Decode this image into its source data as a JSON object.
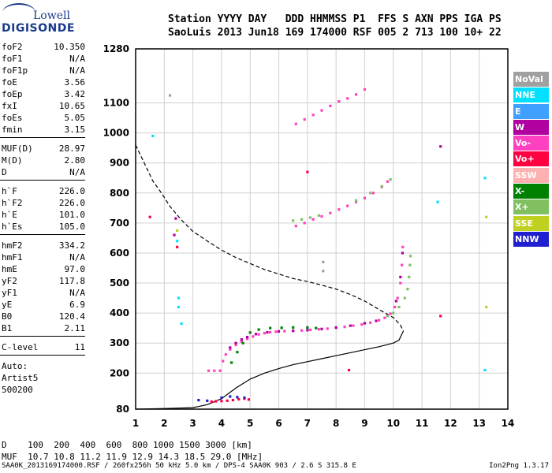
{
  "logo": {
    "line1": "Lowell",
    "line2": "DIGISONDE"
  },
  "header": {
    "line1": "Station YYYY DAY   DDD HHMMSS P1  FFS S AXN PPS IGA PS",
    "line2": "SaoLuis 2013 Jun18 169 174000 RSF 005 2 713 100 10+ 22"
  },
  "params": {
    "group1": [
      {
        "name": "foF2",
        "value": "10.350"
      },
      {
        "name": "foF1",
        "value": "N/A"
      },
      {
        "name": "foF1p",
        "value": "N/A"
      },
      {
        "name": "foE",
        "value": "3.56"
      },
      {
        "name": "foEp",
        "value": "3.42"
      },
      {
        "name": "fxI",
        "value": "10.65"
      },
      {
        "name": "foEs",
        "value": "5.05"
      },
      {
        "name": "fmin",
        "value": "3.15"
      }
    ],
    "group2": [
      {
        "name": "MUF(D)",
        "value": "28.97"
      },
      {
        "name": "M(D)",
        "value": "2.80"
      },
      {
        "name": "D",
        "value": "N/A"
      }
    ],
    "group3": [
      {
        "name": "h`F",
        "value": "226.0"
      },
      {
        "name": "h`F2",
        "value": "226.0"
      },
      {
        "name": "h`E",
        "value": "101.0"
      },
      {
        "name": "h`Es",
        "value": "105.0"
      }
    ],
    "group4": [
      {
        "name": "hmF2",
        "value": "334.2"
      },
      {
        "name": "hmF1",
        "value": "N/A"
      },
      {
        "name": "hmE",
        "value": "97.0"
      },
      {
        "name": "yF2",
        "value": "117.8"
      },
      {
        "name": "yF1",
        "value": "N/A"
      },
      {
        "name": "yE",
        "value": "6.9"
      },
      {
        "name": "B0",
        "value": "120.4"
      },
      {
        "name": "B1",
        "value": "2.11"
      }
    ],
    "clevel": {
      "name": "C-level",
      "value": "11"
    },
    "auto": [
      "Auto:",
      "Artist5",
      "500200"
    ]
  },
  "legend": [
    {
      "label": "NoVal",
      "color": "#a0a0a0"
    },
    {
      "label": "NNE",
      "color": "#00e0ff"
    },
    {
      "label": "E",
      "color": "#40a0ff"
    },
    {
      "label": "W",
      "color": "#b000a0"
    },
    {
      "label": "Vo-",
      "color": "#ff40c0"
    },
    {
      "label": "Vo+",
      "color": "#ff0040"
    },
    {
      "label": "SSW",
      "color": "#ffb0b0"
    },
    {
      "label": "X-",
      "color": "#008000"
    },
    {
      "label": "X+",
      "color": "#80c060"
    },
    {
      "label": "SSE",
      "color": "#c0d020"
    },
    {
      "label": "NNW",
      "color": "#2020d0"
    }
  ],
  "table": {
    "d_row": "D    100  200  400  600  800 1000 1500 3000 [km]",
    "muf_row": "MUF  10.7 10.8 11.2 11.9 12.9 14.3 18.5 29.0 [MHz]"
  },
  "footer": {
    "left": "SAA0K_2013169174000.RSF / 260fx256h 50 kHz 5.0 km / DPS-4 SAA0K 903 / 2.6 S 315.8 E",
    "right": "Ion2Png 1.3.17"
  },
  "chart_data": {
    "type": "scatter",
    "xlim": [
      1,
      14
    ],
    "ylim": [
      80,
      1280
    ],
    "x_ticks": [
      1,
      2,
      3,
      4,
      5,
      6,
      7,
      8,
      9,
      10,
      11,
      12,
      13,
      14
    ],
    "y_ticks": [
      80,
      200,
      300,
      400,
      500,
      600,
      700,
      800,
      900,
      1000,
      1100,
      1280
    ],
    "y_tick_labels": [
      "80",
      "200",
      "300",
      "400",
      "500",
      "600",
      "700",
      "800",
      "900",
      "1000",
      "1100",
      "1280"
    ],
    "grid": true,
    "series": [
      {
        "color": "#ff0040",
        "points": [
          [
            3.65,
            105
          ],
          [
            3.8,
            106
          ],
          [
            4.0,
            107
          ],
          [
            4.2,
            108
          ],
          [
            4.4,
            110
          ],
          [
            4.6,
            113
          ],
          [
            4.8,
            115
          ],
          [
            4.95,
            112
          ]
        ]
      },
      {
        "color": "#ff40c0",
        "points": [
          [
            3.55,
            208
          ],
          [
            3.75,
            208
          ],
          [
            3.95,
            208
          ],
          [
            4.05,
            240
          ],
          [
            4.15,
            262
          ],
          [
            4.3,
            279
          ],
          [
            4.5,
            294
          ],
          [
            4.7,
            305
          ],
          [
            4.9,
            314
          ],
          [
            5.1,
            322
          ],
          [
            5.3,
            329
          ],
          [
            5.5,
            333
          ],
          [
            5.7,
            336
          ],
          [
            5.9,
            338
          ],
          [
            6.2,
            340
          ],
          [
            6.5,
            341
          ],
          [
            6.8,
            342
          ],
          [
            7.1,
            344
          ],
          [
            7.4,
            346
          ],
          [
            7.7,
            348
          ],
          [
            8.0,
            351
          ],
          [
            8.3,
            354
          ],
          [
            8.6,
            358
          ],
          [
            8.9,
            362
          ],
          [
            9.2,
            368
          ],
          [
            9.5,
            376
          ],
          [
            9.7,
            384
          ],
          [
            9.9,
            398
          ],
          [
            10.05,
            420
          ],
          [
            10.15,
            450
          ],
          [
            10.25,
            500
          ],
          [
            10.3,
            560
          ],
          [
            10.33,
            620
          ]
        ]
      },
      {
        "color": "#b000a0",
        "points": [
          [
            4.3,
            285
          ],
          [
            4.5,
            300
          ],
          [
            4.7,
            312
          ],
          [
            4.9,
            320
          ],
          [
            5.2,
            330
          ],
          [
            5.6,
            336
          ],
          [
            6.0,
            339
          ],
          [
            6.5,
            341
          ],
          [
            7.0,
            343
          ],
          [
            7.5,
            347
          ],
          [
            8.0,
            352
          ],
          [
            8.5,
            358
          ],
          [
            9.0,
            366
          ],
          [
            9.4,
            374
          ],
          [
            9.8,
            392
          ],
          [
            10.1,
            440
          ],
          [
            10.25,
            520
          ],
          [
            10.32,
            600
          ]
        ]
      },
      {
        "color": "#008000",
        "points": [
          [
            4.35,
            235
          ],
          [
            4.55,
            270
          ],
          [
            4.75,
            300
          ],
          [
            5.0,
            335
          ],
          [
            5.3,
            345
          ],
          [
            5.7,
            350
          ],
          [
            6.1,
            351
          ],
          [
            6.5,
            352
          ],
          [
            7.0,
            352
          ],
          [
            7.3,
            350
          ]
        ]
      },
      {
        "color": "#80c060",
        "points": [
          [
            9.8,
            390
          ],
          [
            10.0,
            400
          ],
          [
            10.2,
            420
          ],
          [
            10.4,
            450
          ],
          [
            10.5,
            480
          ],
          [
            10.55,
            520
          ],
          [
            10.58,
            560
          ],
          [
            10.6,
            590
          ]
        ]
      },
      {
        "color": "#ff40c0",
        "points": [
          [
            6.6,
            1030
          ],
          [
            6.9,
            1045
          ],
          [
            7.2,
            1060
          ],
          [
            7.5,
            1075
          ],
          [
            7.8,
            1090
          ],
          [
            8.1,
            1105
          ],
          [
            8.4,
            1115
          ],
          [
            8.7,
            1128
          ],
          [
            9.0,
            1145
          ]
        ]
      },
      {
        "color": "#ff40c0",
        "points": [
          [
            6.6,
            690
          ],
          [
            6.9,
            700
          ],
          [
            7.2,
            712
          ],
          [
            7.5,
            722
          ],
          [
            7.8,
            733
          ],
          [
            8.1,
            745
          ],
          [
            8.4,
            757
          ],
          [
            8.7,
            770
          ],
          [
            9.0,
            783
          ],
          [
            9.3,
            800
          ],
          [
            9.6,
            820
          ],
          [
            9.8,
            838
          ]
        ]
      },
      {
        "color": "#80c060",
        "points": [
          [
            6.5,
            708
          ],
          [
            6.8,
            712
          ],
          [
            7.1,
            718
          ],
          [
            7.4,
            725
          ],
          [
            8.7,
            775
          ],
          [
            9.2,
            800
          ],
          [
            9.6,
            822
          ],
          [
            9.9,
            845
          ]
        ]
      },
      {
        "color": "#2020d0",
        "points": [
          [
            3.5,
            108
          ],
          [
            4.0,
            118
          ],
          [
            4.3,
            122
          ],
          [
            4.55,
            120
          ],
          [
            4.8,
            118
          ],
          [
            3.2,
            110
          ]
        ]
      },
      {
        "color": "#00e0ff",
        "points": [
          [
            1.6,
            990
          ],
          [
            2.5,
            450
          ],
          [
            2.5,
            420
          ],
          [
            2.6,
            365
          ],
          [
            11.55,
            770
          ],
          [
            13.2,
            210
          ],
          [
            13.2,
            850
          ],
          [
            2.45,
            640
          ]
        ]
      },
      {
        "color": "#ff0040",
        "points": [
          [
            2.45,
            620
          ],
          [
            11.65,
            390
          ],
          [
            1.5,
            720
          ],
          [
            7.0,
            870
          ],
          [
            8.45,
            210
          ]
        ]
      },
      {
        "color": "#b000a0",
        "points": [
          [
            2.4,
            715
          ],
          [
            2.35,
            660
          ],
          [
            11.65,
            955
          ]
        ]
      },
      {
        "color": "#c0d020",
        "points": [
          [
            2.45,
            675
          ],
          [
            13.25,
            720
          ],
          [
            13.25,
            420
          ]
        ]
      },
      {
        "color": "#a0a0a0",
        "points": [
          [
            7.55,
            570
          ],
          [
            7.55,
            540
          ],
          [
            2.2,
            1125
          ]
        ]
      }
    ],
    "lines": [
      {
        "style": "dashed",
        "points": [
          [
            1.0,
            960
          ],
          [
            1.3,
            900
          ],
          [
            1.6,
            840
          ],
          [
            1.9,
            800
          ],
          [
            2.2,
            755
          ],
          [
            2.6,
            710
          ],
          [
            3.0,
            672
          ],
          [
            3.5,
            640
          ],
          [
            4.0,
            610
          ],
          [
            4.5,
            585
          ],
          [
            5.0,
            565
          ],
          [
            5.5,
            545
          ],
          [
            6.0,
            530
          ],
          [
            6.5,
            515
          ],
          [
            7.0,
            505
          ],
          [
            7.5,
            493
          ],
          [
            8.0,
            480
          ],
          [
            8.5,
            462
          ],
          [
            9.0,
            440
          ],
          [
            9.5,
            412
          ],
          [
            10.0,
            385
          ],
          [
            10.25,
            360
          ],
          [
            10.35,
            340
          ]
        ]
      },
      {
        "style": "solid",
        "points": [
          [
            1.0,
            80
          ],
          [
            2.0,
            82
          ],
          [
            3.0,
            85
          ],
          [
            3.5,
            95
          ],
          [
            4.0,
            115
          ],
          [
            4.5,
            150
          ],
          [
            5.0,
            180
          ],
          [
            5.5,
            200
          ],
          [
            6.0,
            215
          ],
          [
            6.5,
            228
          ],
          [
            7.0,
            238
          ],
          [
            7.5,
            248
          ],
          [
            8.0,
            258
          ],
          [
            8.5,
            268
          ],
          [
            9.0,
            278
          ],
          [
            9.5,
            288
          ],
          [
            10.0,
            300
          ],
          [
            10.2,
            310
          ],
          [
            10.35,
            340
          ]
        ]
      }
    ]
  }
}
